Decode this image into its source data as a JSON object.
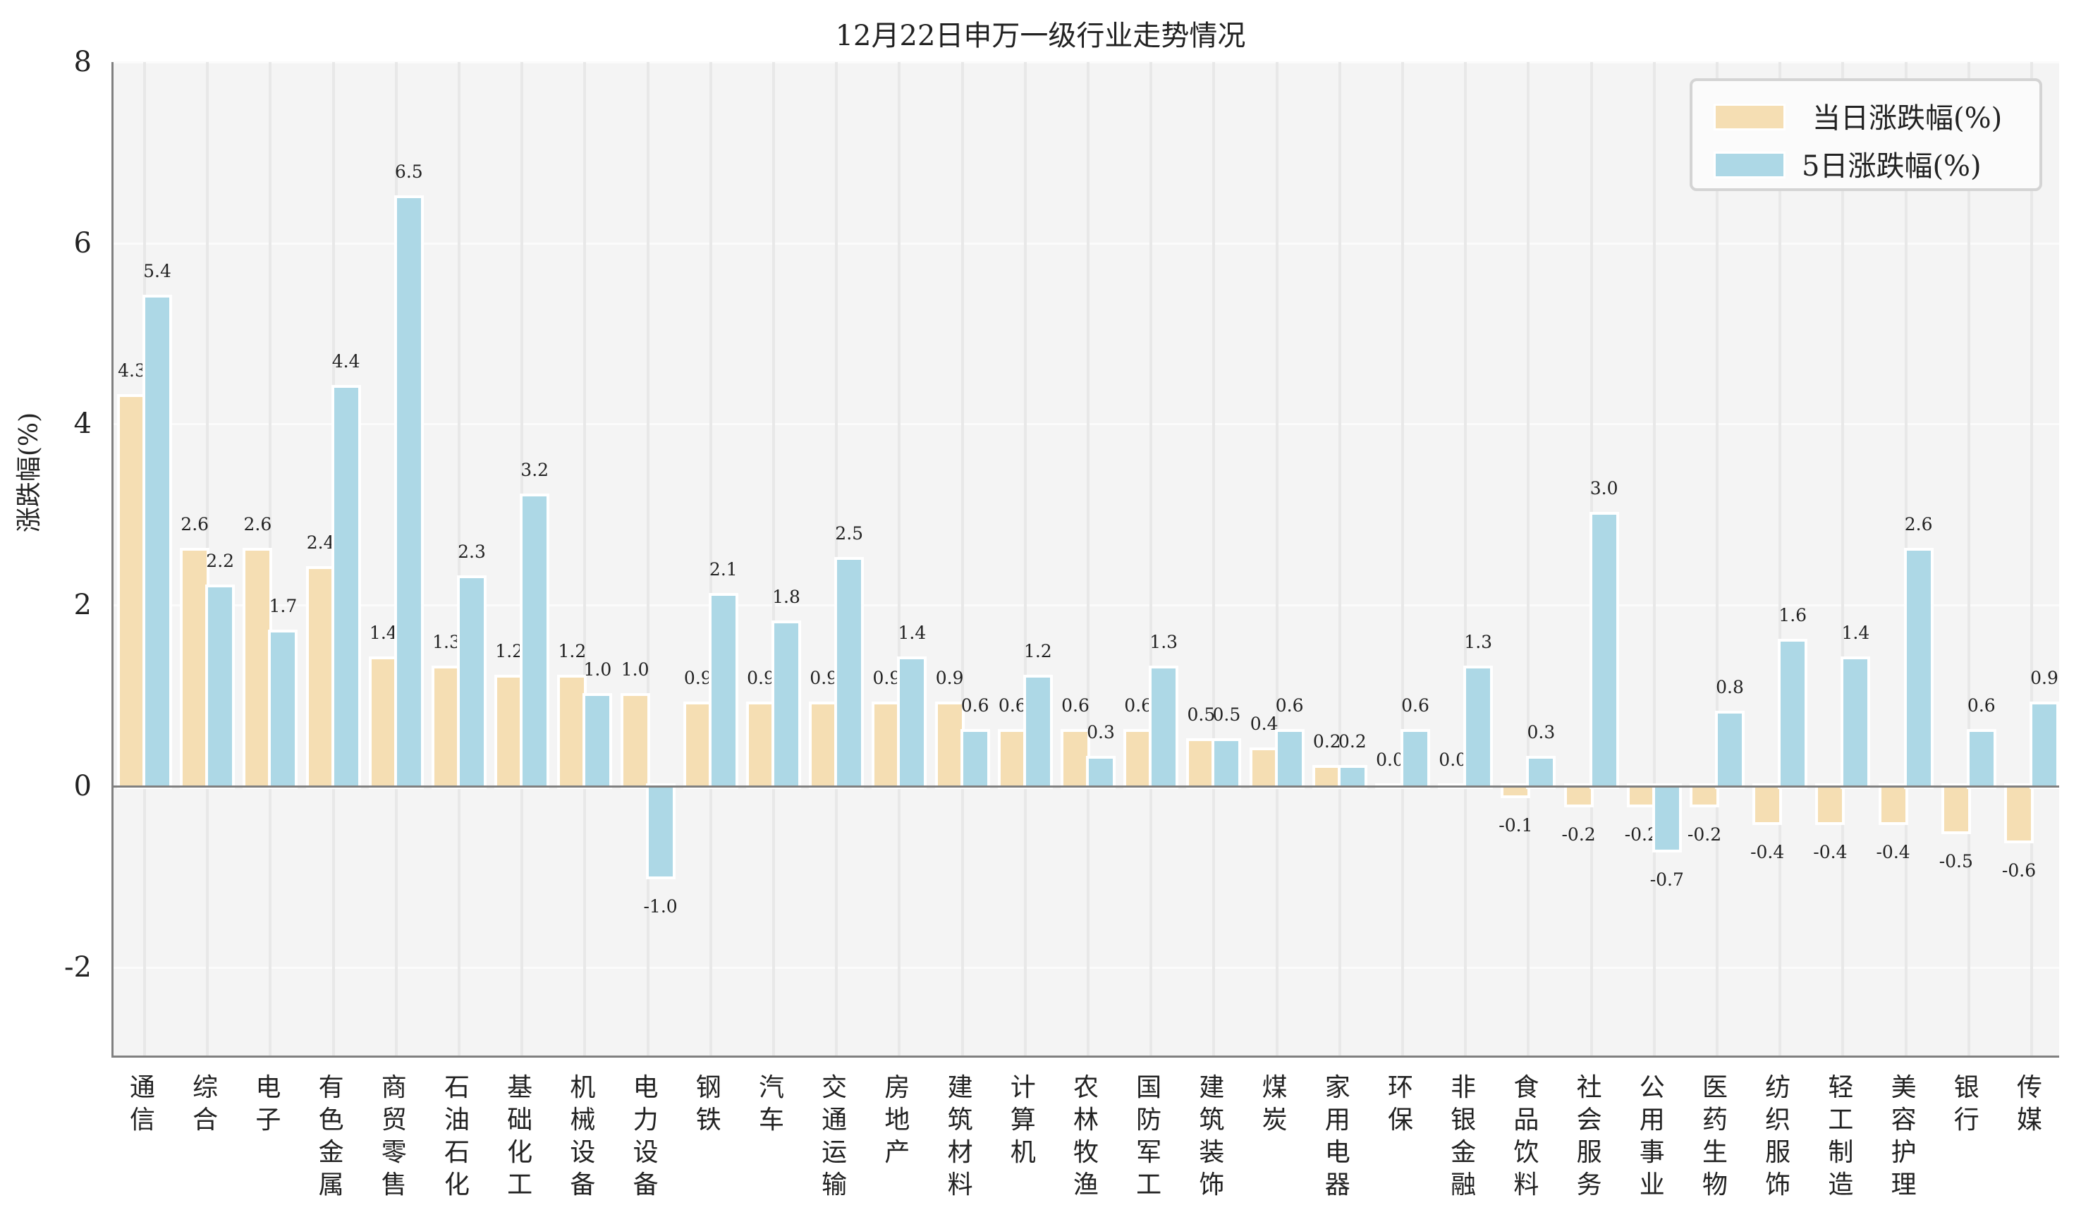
{
  "chart_data": {
    "type": "bar",
    "title": "12月22日申万一级行业走势情况",
    "xlabel": "",
    "ylabel": "涨跌幅(%)",
    "ylim": [
      -3,
      8
    ],
    "yticks": [
      -2,
      0,
      2,
      4,
      6,
      8
    ],
    "grid": true,
    "legend_position": "upper right",
    "categories": [
      "通信",
      "综合",
      "电子",
      "有色金属",
      "商贸零售",
      "石油石化",
      "基础化工",
      "机械设备",
      "电力设备",
      "钢铁",
      "汽车",
      "交通运输",
      "房地产",
      "建筑材料",
      "计算机",
      "农林牧渔",
      "国防军工",
      "建筑装饰",
      "煤炭",
      "家用电器",
      "环保",
      "非银金融",
      "食品饮料",
      "社会服务",
      "公用事业",
      "医药生物",
      "纺织服饰",
      "轻工制造",
      "美容护理",
      "银行",
      "传媒"
    ],
    "series": [
      {
        "name": "当日涨跌幅(%)",
        "color": "#f5deb3",
        "values": [
          4.3,
          2.6,
          2.6,
          2.4,
          1.4,
          1.3,
          1.2,
          1.2,
          1.0,
          0.9,
          0.9,
          0.9,
          0.9,
          0.9,
          0.6,
          0.6,
          0.6,
          0.5,
          0.4,
          0.2,
          0.0,
          0.0,
          -0.1,
          -0.2,
          -0.2,
          -0.2,
          -0.4,
          -0.4,
          -0.4,
          -0.5,
          -0.6
        ]
      },
      {
        "name": "5日涨跌幅(%)",
        "color": "#add8e6",
        "values": [
          5.4,
          2.2,
          1.7,
          4.4,
          6.5,
          2.3,
          3.2,
          1.0,
          -1.0,
          2.1,
          1.8,
          2.5,
          1.4,
          0.6,
          1.2,
          0.3,
          1.3,
          0.5,
          0.6,
          0.2,
          0.6,
          1.3,
          0.3,
          3.0,
          -0.7,
          0.8,
          1.6,
          1.4,
          2.6,
          0.6,
          0.9
        ]
      }
    ]
  },
  "legend": {
    "items": [
      {
        "label": "当日涨跌幅(%)",
        "color": "#f5deb3"
      },
      {
        "label": "5日涨跌幅(%)",
        "color": "#add8e6"
      }
    ]
  }
}
